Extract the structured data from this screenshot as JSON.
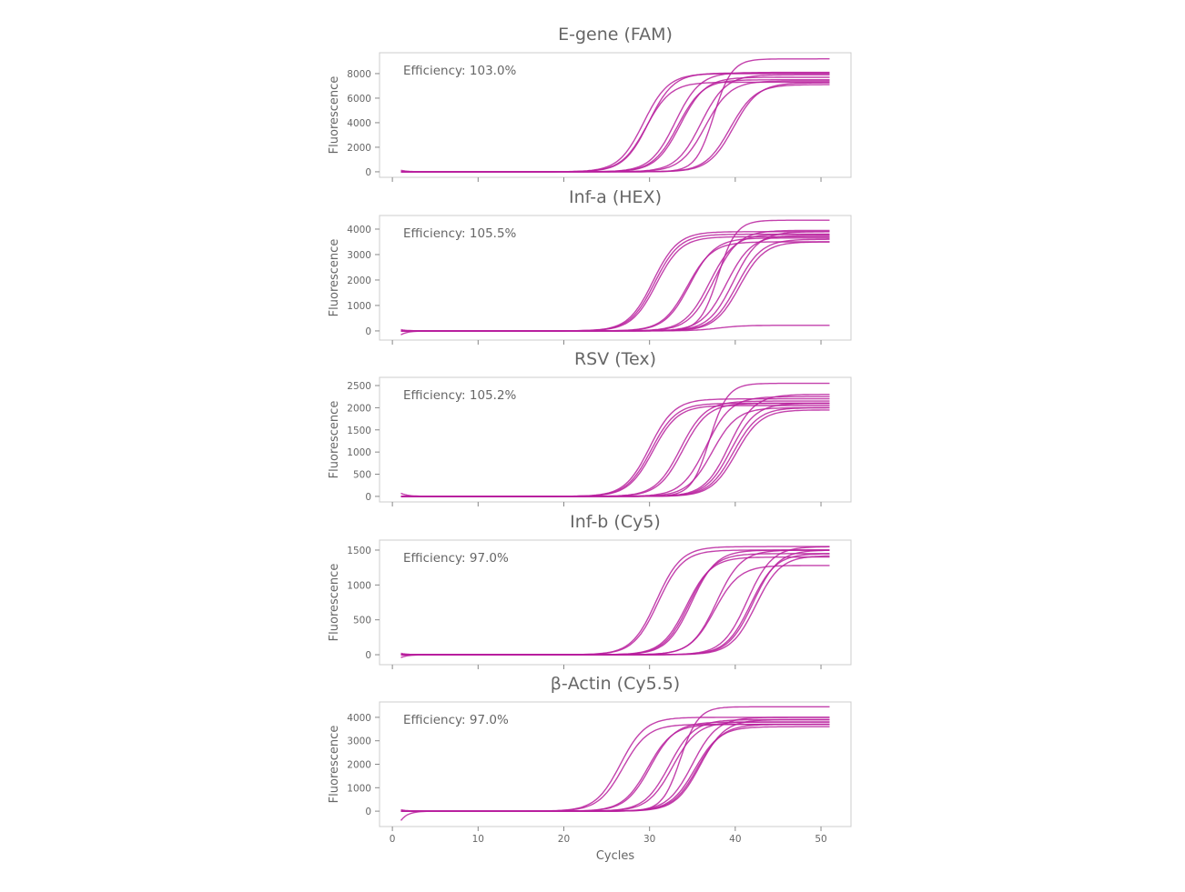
{
  "colors": {
    "curve": "#B8209E",
    "text": "#666666",
    "frame": "#cccccc"
  },
  "chart_data": [
    {
      "type": "line",
      "title": "E-gene (FAM)",
      "annotation": "Efficiency: 103.0%",
      "ylabel": "Fluorescence",
      "xlabel": "",
      "xlim": [
        -1.5,
        53.5
      ],
      "ylim": [
        -450,
        9700
      ],
      "yticks": [
        0,
        2000,
        4000,
        6000,
        8000
      ],
      "xticks": [
        0,
        10,
        20,
        30,
        40,
        50
      ],
      "xticklabels_shown": false,
      "x_range": [
        1,
        51
      ],
      "curves": [
        {
          "ct": 29.3,
          "plateau": 8000
        },
        {
          "ct": 29.6,
          "plateau": 7300
        },
        {
          "ct": 29.9,
          "plateau": 8050
        },
        {
          "ct": 33.0,
          "plateau": 8100
        },
        {
          "ct": 33.3,
          "plateau": 7500
        },
        {
          "ct": 33.6,
          "plateau": 7700
        },
        {
          "ct": 36.0,
          "plateau": 7900
        },
        {
          "ct": 36.5,
          "plateau": 7400
        },
        {
          "ct": 37.5,
          "plateau": 9200,
          "steep": true
        },
        {
          "ct": 39.4,
          "plateau": 7100
        },
        {
          "ct": 39.8,
          "plateau": 7250,
          "start": 120
        }
      ]
    },
    {
      "type": "line",
      "title": "Inf-a (HEX)",
      "annotation": "Efficiency: 105.5%",
      "ylabel": "Fluorescence",
      "xlabel": "",
      "xlim": [
        -1.5,
        53.5
      ],
      "ylim": [
        -360,
        4535
      ],
      "yticks": [
        0,
        1000,
        2000,
        3000,
        4000
      ],
      "xticks": [
        0,
        10,
        20,
        30,
        40,
        50
      ],
      "xticklabels_shown": false,
      "x_range": [
        1,
        51
      ],
      "curves": [
        {
          "ct": 30.4,
          "plateau": 3900
        },
        {
          "ct": 30.6,
          "plateau": 3800
        },
        {
          "ct": 30.8,
          "plateau": 3700
        },
        {
          "ct": 34.4,
          "plateau": 3500
        },
        {
          "ct": 34.7,
          "plateau": 3650
        },
        {
          "ct": 37.0,
          "plateau": 3800
        },
        {
          "ct": 38.0,
          "plateau": 4350,
          "steep": true
        },
        {
          "ct": 37.5,
          "plateau": 3950
        },
        {
          "ct": 39.8,
          "plateau": 3900
        },
        {
          "ct": 40.2,
          "plateau": 3600
        },
        {
          "ct": 40.5,
          "plateau": 3500
        },
        {
          "ct": 38.0,
          "plateau": 220,
          "start": -150
        },
        {
          "ct": 39.0,
          "plateau": 3750,
          "start": 50
        }
      ]
    },
    {
      "type": "line",
      "title": "RSV (Tex)",
      "annotation": "Efficiency: 105.2%",
      "ylabel": "Fluorescence",
      "xlabel": "",
      "xlim": [
        -1.5,
        53.5
      ],
      "ylim": [
        -125,
        2685
      ],
      "yticks": [
        0,
        500,
        1000,
        1500,
        2000,
        2500
      ],
      "xticks": [
        0,
        10,
        20,
        30,
        40,
        50
      ],
      "xticklabels_shown": false,
      "x_range": [
        1,
        51
      ],
      "curves": [
        {
          "ct": 30.0,
          "plateau": 2200
        },
        {
          "ct": 30.2,
          "plateau": 2100
        },
        {
          "ct": 30.4,
          "plateau": 2050
        },
        {
          "ct": 33.6,
          "plateau": 2150
        },
        {
          "ct": 33.9,
          "plateau": 2100
        },
        {
          "ct": 36.6,
          "plateau": 2250
        },
        {
          "ct": 37.0,
          "plateau": 2550,
          "steep": true
        },
        {
          "ct": 37.3,
          "plateau": 2000
        },
        {
          "ct": 39.3,
          "plateau": 2300,
          "start": 70
        },
        {
          "ct": 39.5,
          "plateau": 2100
        },
        {
          "ct": 39.8,
          "plateau": 2000
        },
        {
          "ct": 40.1,
          "plateau": 1950
        }
      ]
    },
    {
      "type": "line",
      "title": "Inf-b (Cy5)",
      "annotation": "Efficiency: 97.0%",
      "ylabel": "Fluorescence",
      "xlabel": "",
      "xlim": [
        -1.5,
        53.5
      ],
      "ylim": [
        -143,
        1643
      ],
      "yticks": [
        0,
        500,
        1000,
        1500
      ],
      "xticks": [
        0,
        10,
        20,
        30,
        40,
        50
      ],
      "xticklabels_shown": false,
      "x_range": [
        1,
        51
      ],
      "curves": [
        {
          "ct": 30.8,
          "plateau": 1550
        },
        {
          "ct": 31.0,
          "plateau": 1500
        },
        {
          "ct": 34.3,
          "plateau": 1400
        },
        {
          "ct": 34.6,
          "plateau": 1450
        },
        {
          "ct": 34.9,
          "plateau": 1500
        },
        {
          "ct": 37.8,
          "plateau": 1500
        },
        {
          "ct": 37.6,
          "plateau": 1280
        },
        {
          "ct": 41.4,
          "plateau": 1550
        },
        {
          "ct": 41.8,
          "plateau": 1450
        },
        {
          "ct": 42.1,
          "plateau": 1500,
          "start": -40
        },
        {
          "ct": 42.4,
          "plateau": 1420,
          "start": 20
        }
      ]
    },
    {
      "type": "line",
      "title": "β-Actin (Cy5.5)",
      "annotation": "Efficiency: 97.0%",
      "ylabel": "Fluorescence",
      "xlabel": "Cycles",
      "xlim": [
        -1.5,
        53.5
      ],
      "ylim": [
        -655,
        4655
      ],
      "yticks": [
        0,
        1000,
        2000,
        3000,
        4000
      ],
      "xticks": [
        0,
        10,
        20,
        30,
        40,
        50
      ],
      "xticklabels_shown": true,
      "x_range": [
        1,
        51
      ],
      "curves": [
        {
          "ct": 26.6,
          "plateau": 4000
        },
        {
          "ct": 26.9,
          "plateau": 3700
        },
        {
          "ct": 29.8,
          "plateau": 3700
        },
        {
          "ct": 30.1,
          "plateau": 3800
        },
        {
          "ct": 32.3,
          "plateau": 3900
        },
        {
          "ct": 32.7,
          "plateau": 3800
        },
        {
          "ct": 33.6,
          "plateau": 4450,
          "steep": true
        },
        {
          "ct": 35.0,
          "plateau": 4000
        },
        {
          "ct": 35.3,
          "plateau": 3600
        },
        {
          "ct": 35.6,
          "plateau": 3700,
          "start": -400
        },
        {
          "ct": 35.9,
          "plateau": 3900,
          "start": 60
        }
      ]
    }
  ]
}
